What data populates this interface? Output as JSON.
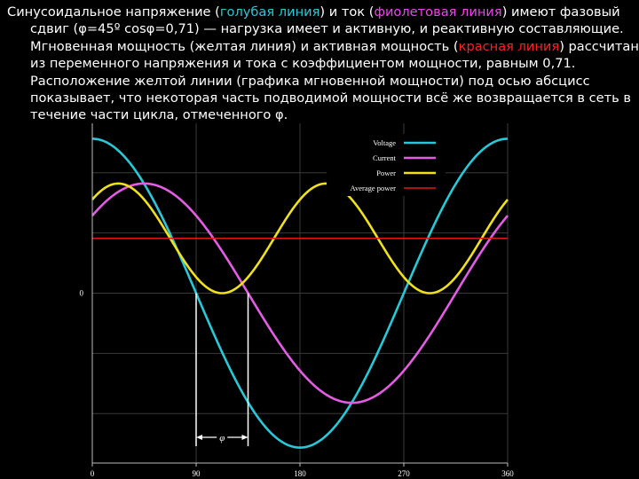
{
  "caption": {
    "l1a": "Синусоидальное напряжение (",
    "l1b": "голубая линия",
    "l1c": ") и ток (",
    "l1d": "фиолетовая линия",
    "l1e": ") имеют фазовый",
    "l2": "сдвиг (φ=45º cosφ=0,71) — нагрузка имеет и активную, и реактивную составляющие.",
    "l3a": "Мгновенная мощность (желтая линия) и активная мощность (",
    "l3b": "красная линия",
    "l3c": ") рассчитаны",
    "l4": "из переменного напряжения и тока с коэффициентом мощности, равным 0,71.",
    "l5": "Расположение желтой линии (графика мгновенной мощности) под осью абсцисс",
    "l6": "показывает, что некоторая часть подводимой мощности всё же возвращается в сеть в",
    "l7": "течение части цикла, отмеченного φ.",
    "colors": {
      "blue": "#29c8d8",
      "violet": "#ee44ee",
      "red": "#ff2020"
    }
  },
  "chart_data": {
    "type": "line",
    "x_ticks": [
      "0",
      "90",
      "180",
      "270",
      "360"
    ],
    "y_ticks": [
      "0"
    ],
    "xlim": [
      0,
      360
    ],
    "ylim": [
      -1.1,
      1.1
    ],
    "grid": true,
    "legend_position": "top-right",
    "phi_label": "φ",
    "series": [
      {
        "name": "Voltage",
        "color": "#29c8d8",
        "function": "cos",
        "amplitude": 1.0,
        "phase_deg": 0
      },
      {
        "name": "Current",
        "color": "#e35ce3",
        "function": "cos",
        "amplitude": 0.71,
        "phase_deg": 45
      },
      {
        "name": "Power",
        "color": "#f0e020",
        "function": "product",
        "offset": 0.355,
        "amplitude": 0.355,
        "phase_deg": 45
      },
      {
        "name": "Average power",
        "color": "#dd1a1a",
        "function": "constant",
        "value": 0.355
      }
    ]
  }
}
